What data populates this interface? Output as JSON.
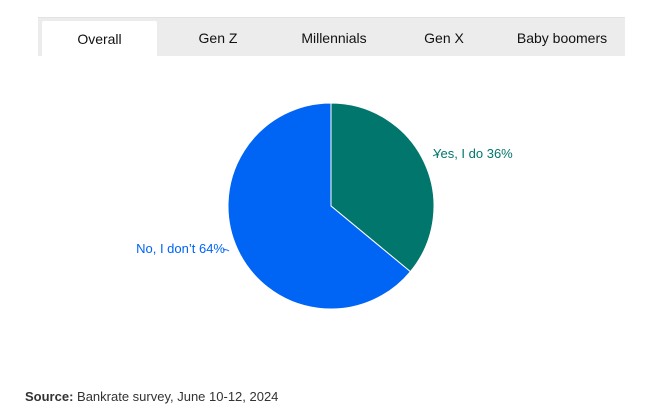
{
  "tabs": [
    {
      "label": "Overall",
      "active": true
    },
    {
      "label": "Gen Z",
      "active": false
    },
    {
      "label": "Millennials",
      "active": false
    },
    {
      "label": "Gen X",
      "active": false
    },
    {
      "label": "Baby boomers",
      "active": false
    }
  ],
  "chart_data": {
    "type": "pie",
    "slices": [
      {
        "label": "Yes, I do 36%",
        "value": 36,
        "color": "#00766c"
      },
      {
        "label": "No, I don’t 64%",
        "value": 64,
        "color": "#0064f5"
      }
    ]
  },
  "source": {
    "prefix": "Source:",
    "text": "Bankrate survey, June 10-12, 2024"
  }
}
